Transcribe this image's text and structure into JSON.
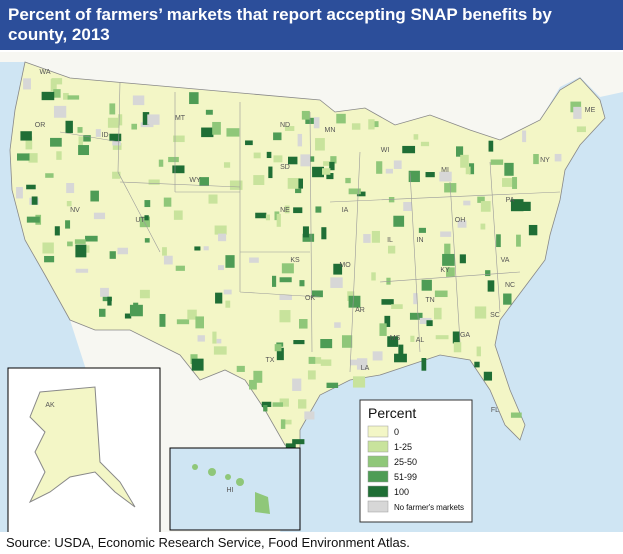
{
  "header": {
    "title": "Percent of farmers’ markets that report accepting SNAP benefits by county, 2013"
  },
  "map": {
    "state_labels": [
      "WA",
      "OR",
      "ID",
      "MT",
      "WY",
      "NV",
      "UT",
      "ND",
      "SD",
      "NE",
      "KS",
      "OK",
      "TX",
      "MO",
      "AR",
      "LA",
      "MS",
      "AL",
      "GA",
      "FL",
      "TN",
      "KY",
      "IL",
      "IN",
      "OH",
      "MI",
      "WI",
      "MN",
      "IA",
      "PA",
      "NY",
      "VA",
      "NC",
      "SC",
      "ME",
      "AK",
      "HI"
    ]
  },
  "legend": {
    "title": "Percent",
    "items": [
      {
        "label": "0",
        "color": "#f3f6c6"
      },
      {
        "label": "1-25",
        "color": "#c8e39c"
      },
      {
        "label": "25-50",
        "color": "#8fc779"
      },
      {
        "label": "51-99",
        "color": "#4e9c55"
      },
      {
        "label": "100",
        "color": "#1f6e35"
      },
      {
        "label": "No farmer's markets",
        "color": "#d7d7d7"
      }
    ]
  },
  "footer": {
    "source": "Source: USDA, Economic Research Service, Food Environment Atlas."
  }
}
